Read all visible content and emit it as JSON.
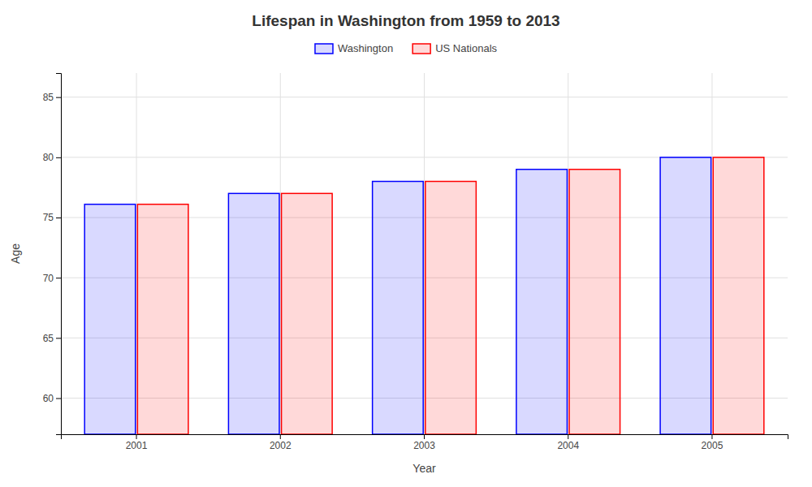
{
  "chart_data": {
    "type": "bar",
    "title": "Lifespan in Washington from 1959 to 2013",
    "xlabel": "Year",
    "ylabel": "Age",
    "categories": [
      "2001",
      "2002",
      "2003",
      "2004",
      "2005"
    ],
    "series": [
      {
        "name": "Washington",
        "color": "#0000ff",
        "values": [
          76.1,
          77.0,
          78.0,
          79.0,
          80.0
        ]
      },
      {
        "name": "US Nationals",
        "color": "#ff0000",
        "values": [
          76.1,
          77.0,
          78.0,
          79.0,
          80.0
        ]
      }
    ],
    "ylim": [
      57,
      87
    ],
    "yticks": [
      60,
      65,
      70,
      75,
      80,
      85
    ],
    "grid": true,
    "legend": "top"
  }
}
